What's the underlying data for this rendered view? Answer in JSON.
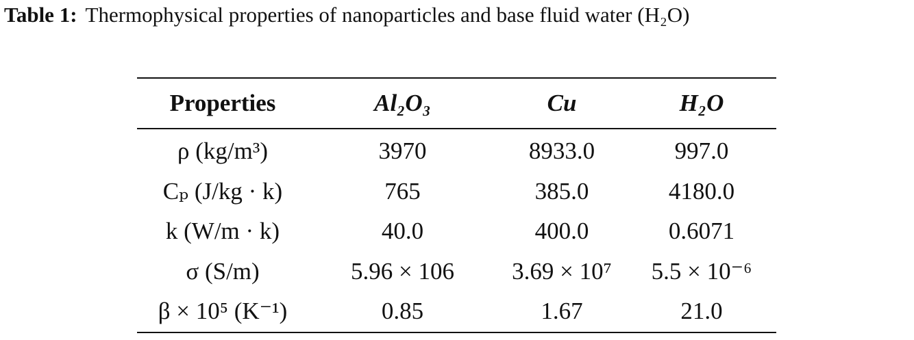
{
  "caption": {
    "label": "Table 1:",
    "text": "Thermophysical properties of nanoparticles and base fluid water (H₂O)"
  },
  "table": {
    "header": [
      "Properties",
      "Al₂O₃",
      "Cu",
      "H₂O"
    ],
    "rows": [
      [
        "ρ (kg/m³)",
        "3970",
        "8933.0",
        "997.0"
      ],
      [
        "Cₚ (J/kg · k)",
        "765",
        "385.0",
        "4180.0"
      ],
      [
        "k (W/m · k)",
        "40.0",
        "400.0",
        "0.6071"
      ],
      [
        "σ (S/m)",
        "5.96 × 106",
        "3.69 × 10⁷",
        "5.5 × 10⁻⁶"
      ],
      [
        "β × 10⁵ (K⁻¹)",
        "0.85",
        "1.67",
        "21.0"
      ]
    ]
  }
}
